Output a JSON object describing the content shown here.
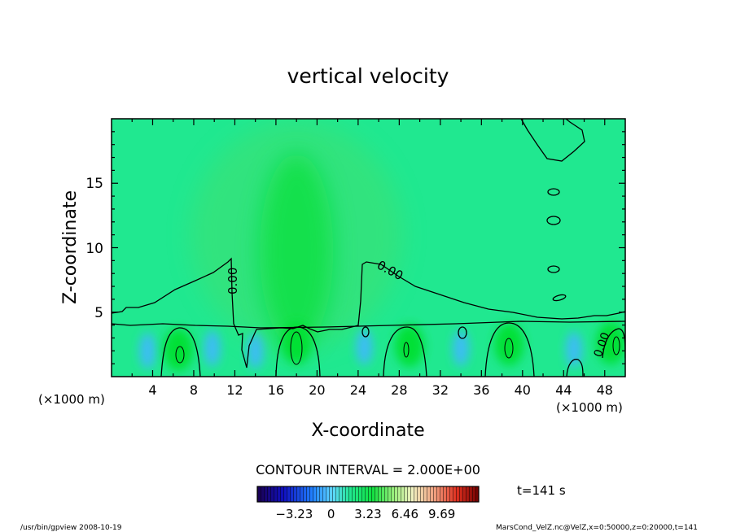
{
  "chart_data": {
    "type": "heatmap",
    "title": "vertical velocity",
    "xlabel": "X-coordinate",
    "ylabel": "Z-coordinate",
    "x_unit_left": "(×1000 m)",
    "x_unit_right": "(×1000 m)",
    "xlim": [
      0,
      50
    ],
    "ylim": [
      0,
      20
    ],
    "x_ticks": [
      "4",
      "8",
      "12",
      "16",
      "20",
      "24",
      "28",
      "32",
      "36",
      "40",
      "44",
      "48"
    ],
    "y_ticks": [
      "5",
      "10",
      "15"
    ],
    "contour_interval_text": "CONTOUR INTERVAL = 2.000E+00",
    "contour_labels": [
      "0.00",
      "0.00",
      "0.00"
    ],
    "time_label": "t=141 s",
    "colorbar": {
      "range": [
        -6.46,
        12.92
      ],
      "tick_labels": [
        "−3.23",
        "0",
        "3.23",
        "6.46",
        "9.69"
      ],
      "tick_values": [
        -3.23,
        0,
        3.23,
        6.46,
        9.69
      ]
    },
    "updraft_cells": [
      {
        "x": 6.5,
        "z": 2.1,
        "w": 3.0
      },
      {
        "x": 18.0,
        "z": 2.6,
        "w": 5.0
      },
      {
        "x": 29.0,
        "z": 2.4,
        "w": 3.5
      },
      {
        "x": 38.7,
        "z": 2.5,
        "w": 3.8
      },
      {
        "x": 48.6,
        "z": 2.6,
        "w": 2.5
      }
    ],
    "downdraft_cells": [
      {
        "x": 3.5,
        "z": 2.0
      },
      {
        "x": 9.8,
        "z": 2.2
      },
      {
        "x": 14.0,
        "z": 2.0
      },
      {
        "x": 24.6,
        "z": 2.3
      },
      {
        "x": 34.0,
        "z": 2.2
      },
      {
        "x": 45.0,
        "z": 2.1
      }
    ],
    "plume": {
      "x": 18.0,
      "z": 11.0,
      "w": 0.8
    }
  },
  "footer": {
    "left": "/usr/bin/gpview  2008-10-19",
    "right": "MarsCond_VelZ.nc@VelZ,x=0:50000,z=0:20000,t=141"
  },
  "colors": {
    "background_field": "#20e890",
    "updraft": "#00e030",
    "downdraft": "#40b8ff",
    "contour": "#000000"
  }
}
